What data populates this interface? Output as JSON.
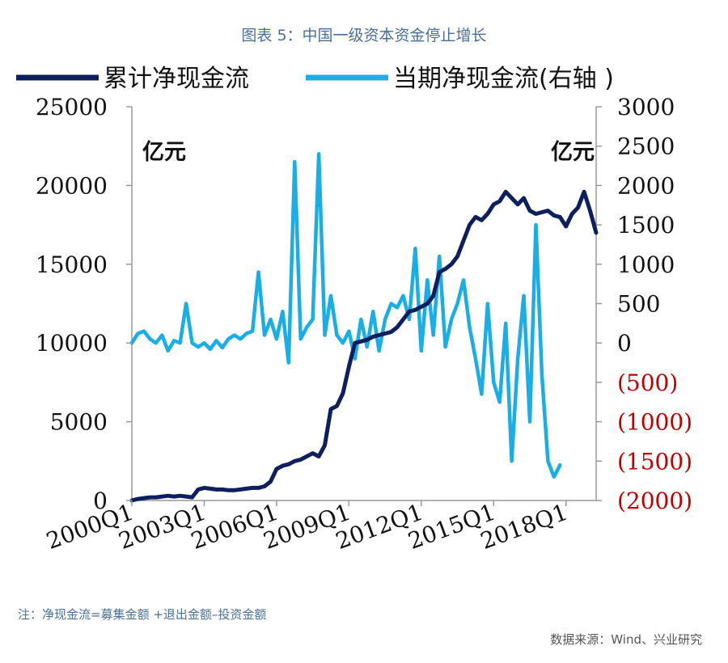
{
  "chart_data": {
    "type": "line",
    "title": "图表 5：中国一级资本资金停止增长",
    "left_unit": "亿元",
    "right_unit": "亿元",
    "y_left": {
      "range": [
        0,
        25000
      ],
      "ticks": [
        "0",
        "5000",
        "10000",
        "15000",
        "20000",
        "25000"
      ]
    },
    "y_right": {
      "range": [
        -2000,
        3000
      ],
      "ticks": [
        "(2000)",
        "(1500)",
        "(1000)",
        "(500)",
        "0",
        "500",
        "1000",
        "1500",
        "2000",
        "2500",
        "3000"
      ]
    },
    "x_range": [
      2000.0,
      2019.25
    ],
    "x_ticks": [
      {
        "label": "2000Q1",
        "x": 2000.0
      },
      {
        "label": "2003Q1",
        "x": 2003.0
      },
      {
        "label": "2006Q1",
        "x": 2006.0
      },
      {
        "label": "2009Q1",
        "x": 2009.0
      },
      {
        "label": "2012Q1",
        "x": 2012.0
      },
      {
        "label": "2015Q1",
        "x": 2015.0
      },
      {
        "label": "2018Q1",
        "x": 2018.0
      }
    ],
    "series": [
      {
        "name": "累计净现金流",
        "axis": "left",
        "color": "#0d1f5c",
        "points": [
          [
            2000.0,
            0
          ],
          [
            2000.25,
            100
          ],
          [
            2000.5,
            150
          ],
          [
            2000.75,
            200
          ],
          [
            2001.0,
            200
          ],
          [
            2001.25,
            250
          ],
          [
            2001.5,
            300
          ],
          [
            2001.75,
            250
          ],
          [
            2002.0,
            300
          ],
          [
            2002.25,
            250
          ],
          [
            2002.5,
            200
          ],
          [
            2002.75,
            700
          ],
          [
            2003.0,
            800
          ],
          [
            2003.25,
            750
          ],
          [
            2003.5,
            700
          ],
          [
            2003.75,
            700
          ],
          [
            2004.0,
            650
          ],
          [
            2004.25,
            650
          ],
          [
            2004.5,
            700
          ],
          [
            2004.75,
            750
          ],
          [
            2005.0,
            800
          ],
          [
            2005.25,
            800
          ],
          [
            2005.5,
            900
          ],
          [
            2005.75,
            1200
          ],
          [
            2006.0,
            2000
          ],
          [
            2006.25,
            2200
          ],
          [
            2006.5,
            2300
          ],
          [
            2006.75,
            2500
          ],
          [
            2007.0,
            2600
          ],
          [
            2007.25,
            2800
          ],
          [
            2007.5,
            3000
          ],
          [
            2007.75,
            2800
          ],
          [
            2008.0,
            3500
          ],
          [
            2008.25,
            5800
          ],
          [
            2008.5,
            6000
          ],
          [
            2008.75,
            6800
          ],
          [
            2009.0,
            8500
          ],
          [
            2009.25,
            10000
          ],
          [
            2009.5,
            10100
          ],
          [
            2009.75,
            10200
          ],
          [
            2010.0,
            10400
          ],
          [
            2010.25,
            10500
          ],
          [
            2010.5,
            10600
          ],
          [
            2010.75,
            10700
          ],
          [
            2011.0,
            11000
          ],
          [
            2011.25,
            11500
          ],
          [
            2011.5,
            12000
          ],
          [
            2011.75,
            12100
          ],
          [
            2012.0,
            12300
          ],
          [
            2012.25,
            12500
          ],
          [
            2012.5,
            13000
          ],
          [
            2012.75,
            14500
          ],
          [
            2013.0,
            14700
          ],
          [
            2013.25,
            15000
          ],
          [
            2013.5,
            15500
          ],
          [
            2013.75,
            16500
          ],
          [
            2014.0,
            17500
          ],
          [
            2014.25,
            18000
          ],
          [
            2014.5,
            17800
          ],
          [
            2014.75,
            18200
          ],
          [
            2015.0,
            18800
          ],
          [
            2015.25,
            19000
          ],
          [
            2015.5,
            19600
          ],
          [
            2015.75,
            19200
          ],
          [
            2016.0,
            18800
          ],
          [
            2016.25,
            19200
          ],
          [
            2016.5,
            18400
          ],
          [
            2016.75,
            18200
          ],
          [
            2017.0,
            18300
          ],
          [
            2017.25,
            18400
          ],
          [
            2017.5,
            18100
          ],
          [
            2017.75,
            18000
          ],
          [
            2018.0,
            17400
          ],
          [
            2018.25,
            18200
          ],
          [
            2018.5,
            18600
          ],
          [
            2018.75,
            19600
          ],
          [
            2019.0,
            18400
          ],
          [
            2019.25,
            17000
          ]
        ]
      },
      {
        "name": "当期净现金流(右轴 )",
        "axis": "right",
        "color": "#1aaee6",
        "points": [
          [
            2000.0,
            0
          ],
          [
            2000.25,
            120
          ],
          [
            2000.5,
            150
          ],
          [
            2000.75,
            50
          ],
          [
            2001.0,
            0
          ],
          [
            2001.25,
            100
          ],
          [
            2001.5,
            -100
          ],
          [
            2001.75,
            30
          ],
          [
            2002.0,
            0
          ],
          [
            2002.25,
            500
          ],
          [
            2002.5,
            0
          ],
          [
            2002.75,
            -50
          ],
          [
            2003.0,
            0
          ],
          [
            2003.25,
            -80
          ],
          [
            2003.5,
            30
          ],
          [
            2003.75,
            -60
          ],
          [
            2004.0,
            50
          ],
          [
            2004.25,
            100
          ],
          [
            2004.5,
            50
          ],
          [
            2004.75,
            120
          ],
          [
            2005.0,
            150
          ],
          [
            2005.25,
            900
          ],
          [
            2005.5,
            100
          ],
          [
            2005.75,
            300
          ],
          [
            2006.0,
            50
          ],
          [
            2006.25,
            400
          ],
          [
            2006.5,
            -250
          ],
          [
            2006.75,
            2300
          ],
          [
            2007.0,
            50
          ],
          [
            2007.25,
            200
          ],
          [
            2007.5,
            300
          ],
          [
            2007.75,
            2400
          ],
          [
            2008.0,
            100
          ],
          [
            2008.25,
            600
          ],
          [
            2008.5,
            100
          ],
          [
            2008.75,
            0
          ],
          [
            2009.0,
            150
          ],
          [
            2009.25,
            -200
          ],
          [
            2009.5,
            300
          ],
          [
            2009.75,
            -50
          ],
          [
            2010.0,
            400
          ],
          [
            2010.25,
            -100
          ],
          [
            2010.5,
            300
          ],
          [
            2010.75,
            500
          ],
          [
            2011.0,
            450
          ],
          [
            2011.25,
            600
          ],
          [
            2011.5,
            300
          ],
          [
            2011.75,
            1200
          ],
          [
            2012.0,
            -100
          ],
          [
            2012.25,
            800
          ],
          [
            2012.5,
            100
          ],
          [
            2012.75,
            1100
          ],
          [
            2013.0,
            -50
          ],
          [
            2013.25,
            300
          ],
          [
            2013.5,
            500
          ],
          [
            2013.75,
            800
          ],
          [
            2014.0,
            200
          ],
          [
            2014.25,
            -200
          ],
          [
            2014.5,
            -650
          ],
          [
            2014.75,
            500
          ],
          [
            2015.0,
            -500
          ],
          [
            2015.25,
            -750
          ],
          [
            2015.5,
            250
          ],
          [
            2015.75,
            -1500
          ],
          [
            2016.0,
            -200
          ],
          [
            2016.25,
            600
          ],
          [
            2016.5,
            -1000
          ],
          [
            2016.75,
            1500
          ],
          [
            2017.0,
            -400
          ],
          [
            2017.25,
            -1500
          ],
          [
            2017.5,
            -1700
          ],
          [
            2017.75,
            -1550
          ]
        ]
      }
    ],
    "note": "注：净现金流=募集金额 +退出金额–投资金额",
    "source": "数据来源：Wind、兴业研究"
  }
}
